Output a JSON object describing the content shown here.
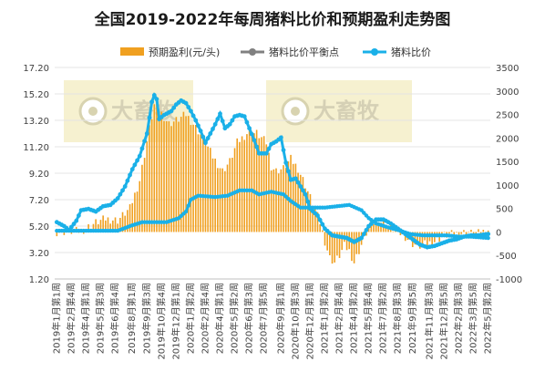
{
  "chart_data": {
    "type": "line",
    "title": "全国2019-2022年每周猪料比价和预期盈利走势图",
    "legend": [
      {
        "name": "预期盈利(元/头)",
        "kind": "bar",
        "color": "#f0a020"
      },
      {
        "name": "猪料比价平衡点",
        "kind": "line",
        "color": "#808080"
      },
      {
        "name": "猪料比价",
        "kind": "line",
        "color": "#1ab0e8"
      }
    ],
    "legend_position": "top",
    "watermarks": [
      "大畜牧",
      "大畜牧"
    ],
    "y_left": {
      "min": 1.2,
      "max": 17.2,
      "ticks": [
        "17.20",
        "15.20",
        "13.20",
        "11.20",
        "9.20",
        "7.20",
        "5.20",
        "3.20",
        "1.20"
      ]
    },
    "y_right": {
      "min": -1000,
      "max": 3500,
      "ticks": [
        "3500",
        "3000",
        "2500",
        "2000",
        "1500",
        "1000",
        "500",
        "0",
        "-500",
        "-1000"
      ]
    },
    "x_ticks": [
      "2019年1月第1周",
      "2019年2月第4周",
      "2019年4月第1周",
      "2019年5月第3周",
      "2019年6月第4周",
      "2019年8月第1周",
      "2019年9月第3周",
      "2019年10月第4周",
      "2019年12月第1周",
      "2020年1月第2周",
      "2020年2月第4周",
      "2020年4月第1周",
      "2020年5月第2周",
      "2020年6月第3周",
      "2020年7月第5周",
      "2020年9月第1周",
      "2020年10月第3周",
      "2020年12月第1周",
      "2021年1月第2周",
      "2021年2月第4周",
      "2021年4月第2周",
      "2021年5月第4周",
      "2021年7月第2周",
      "2021年8月第3周",
      "2021年9月第5周",
      "2021年11月第3周",
      "2021年12月第5周",
      "2022年2月第3周",
      "2022年3月第5周",
      "2022年5月第2周"
    ],
    "weeks_count": 178,
    "pig_feed_ratio": {
      "name": "猪料比价",
      "points": [
        [
          0,
          5.5
        ],
        [
          3,
          5.2
        ],
        [
          5,
          4.9
        ],
        [
          8,
          5.6
        ],
        [
          10,
          6.4
        ],
        [
          13,
          6.5
        ],
        [
          16,
          6.3
        ],
        [
          19,
          6.7
        ],
        [
          22,
          6.8
        ],
        [
          25,
          7.3
        ],
        [
          28,
          8.2
        ],
        [
          31,
          9.5
        ],
        [
          34,
          10.5
        ],
        [
          37,
          12.2
        ],
        [
          39,
          14.6
        ],
        [
          40,
          15.1
        ],
        [
          41,
          14.8
        ],
        [
          42,
          13.3
        ],
        [
          44,
          13.6
        ],
        [
          47,
          13.9
        ],
        [
          49,
          14.4
        ],
        [
          51,
          14.7
        ],
        [
          53,
          14.5
        ],
        [
          55,
          13.9
        ],
        [
          57,
          13.2
        ],
        [
          59,
          12.4
        ],
        [
          61,
          11.5
        ],
        [
          63,
          12.2
        ],
        [
          65,
          12.9
        ],
        [
          67,
          13.7
        ],
        [
          69,
          12.6
        ],
        [
          71,
          12.9
        ],
        [
          73,
          13.5
        ],
        [
          75,
          13.6
        ],
        [
          77,
          13.5
        ],
        [
          79,
          12.6
        ],
        [
          81,
          11.7
        ],
        [
          83,
          10.7
        ],
        [
          86,
          10.7
        ],
        [
          88,
          11.4
        ],
        [
          90,
          11.6
        ],
        [
          92,
          11.9
        ],
        [
          94,
          10.0
        ],
        [
          96,
          8.7
        ],
        [
          98,
          8.8
        ],
        [
          100,
          8.2
        ],
        [
          102,
          7.6
        ],
        [
          104,
          6.5
        ],
        [
          107,
          6.0
        ],
        [
          110,
          5.0
        ],
        [
          113,
          4.5
        ],
        [
          116,
          4.4
        ],
        [
          119,
          4.3
        ],
        [
          122,
          4.0
        ],
        [
          125,
          4.3
        ],
        [
          128,
          5.2
        ],
        [
          131,
          5.7
        ],
        [
          134,
          5.7
        ],
        [
          137,
          5.4
        ],
        [
          140,
          5.0
        ],
        [
          143,
          4.6
        ],
        [
          146,
          4.2
        ],
        [
          149,
          3.8
        ],
        [
          152,
          3.6
        ],
        [
          155,
          3.7
        ],
        [
          158,
          3.9
        ],
        [
          161,
          4.1
        ],
        [
          164,
          4.2
        ],
        [
          167,
          4.4
        ],
        [
          170,
          4.5
        ],
        [
          173,
          4.5
        ],
        [
          177,
          4.6
        ]
      ]
    },
    "balance_point": {
      "name": "猪料比价平衡点",
      "points": [
        [
          0,
          4.85
        ],
        [
          10,
          4.85
        ],
        [
          25,
          4.85
        ],
        [
          30,
          5.2
        ],
        [
          35,
          5.5
        ],
        [
          45,
          5.5
        ],
        [
          50,
          5.8
        ],
        [
          53,
          6.3
        ],
        [
          55,
          7.2
        ],
        [
          58,
          7.5
        ],
        [
          65,
          7.4
        ],
        [
          70,
          7.5
        ],
        [
          75,
          7.9
        ],
        [
          80,
          7.9
        ],
        [
          83,
          7.6
        ],
        [
          88,
          7.8
        ],
        [
          93,
          7.6
        ],
        [
          96,
          7.1
        ],
        [
          100,
          6.6
        ],
        [
          110,
          6.6
        ],
        [
          115,
          6.7
        ],
        [
          120,
          6.8
        ],
        [
          125,
          6.4
        ],
        [
          128,
          5.8
        ],
        [
          131,
          5.4
        ],
        [
          136,
          5.1
        ],
        [
          140,
          4.9
        ],
        [
          145,
          4.6
        ],
        [
          150,
          4.5
        ],
        [
          160,
          4.5
        ],
        [
          165,
          4.4
        ],
        [
          170,
          4.4
        ],
        [
          177,
          4.3
        ]
      ]
    },
    "expected_profit": {
      "name": "预期盈利(元/头)",
      "unit": "元/头",
      "points": [
        [
          0,
          0
        ],
        [
          10,
          20
        ],
        [
          16,
          200
        ],
        [
          20,
          280
        ],
        [
          25,
          250
        ],
        [
          30,
          500
        ],
        [
          34,
          1100
        ],
        [
          38,
          2200
        ],
        [
          40,
          2700
        ],
        [
          42,
          2600
        ],
        [
          46,
          2300
        ],
        [
          50,
          2400
        ],
        [
          53,
          2500
        ],
        [
          56,
          2300
        ],
        [
          60,
          2000
        ],
        [
          64,
          1600
        ],
        [
          68,
          1300
        ],
        [
          71,
          1500
        ],
        [
          74,
          1900
        ],
        [
          78,
          2100
        ],
        [
          82,
          2100
        ],
        [
          86,
          1900
        ],
        [
          88,
          1400
        ],
        [
          90,
          1300
        ],
        [
          93,
          1350
        ],
        [
          96,
          1550
        ],
        [
          99,
          1350
        ],
        [
          102,
          1000
        ],
        [
          105,
          600
        ],
        [
          108,
          200
        ],
        [
          110,
          -200
        ],
        [
          112,
          -550
        ],
        [
          114,
          -650
        ],
        [
          116,
          -500
        ],
        [
          118,
          -300
        ],
        [
          120,
          -400
        ],
        [
          122,
          -650
        ],
        [
          124,
          -400
        ],
        [
          126,
          -150
        ],
        [
          128,
          100
        ],
        [
          131,
          250
        ],
        [
          134,
          200
        ],
        [
          137,
          100
        ],
        [
          140,
          0
        ],
        [
          143,
          -100
        ],
        [
          146,
          -250
        ],
        [
          149,
          -300
        ],
        [
          152,
          -250
        ],
        [
          155,
          -200
        ],
        [
          158,
          -100
        ],
        [
          161,
          -50
        ],
        [
          164,
          -50
        ],
        [
          168,
          0
        ],
        [
          172,
          -50
        ],
        [
          177,
          50
        ]
      ]
    }
  }
}
